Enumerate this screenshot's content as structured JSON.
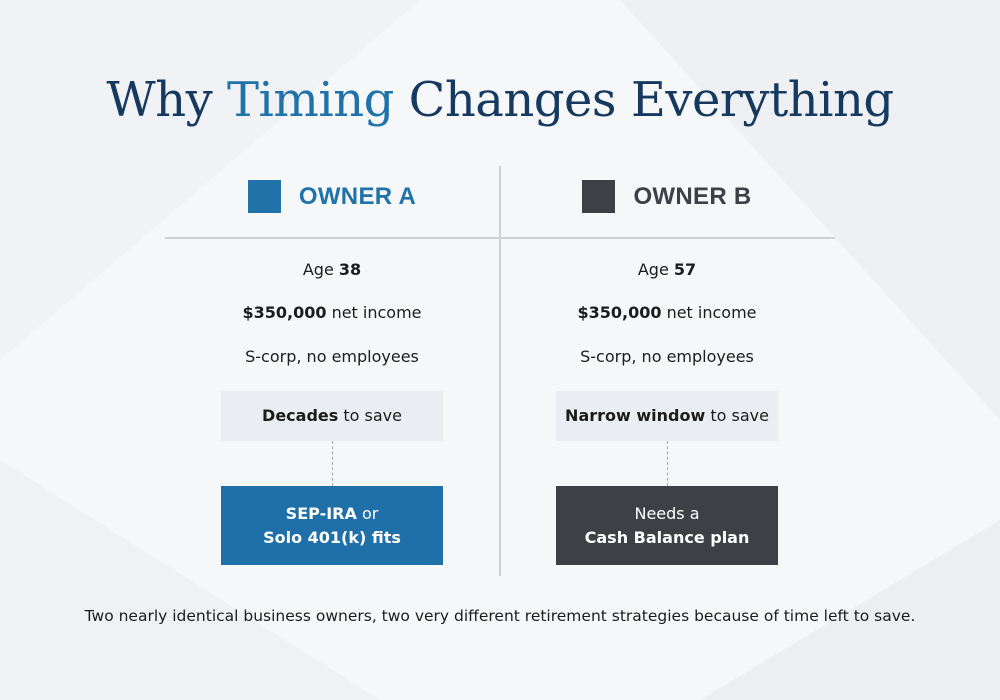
{
  "title": {
    "prefix": "Why ",
    "accent": "Timing",
    "suffix": " Changes Everything"
  },
  "colors": {
    "title": "#163a5f",
    "accent": "#1f73a8",
    "owner_a": "#1f73a8",
    "owner_b": "#3d4145",
    "box_light": "#eaedf2"
  },
  "owner_a": {
    "label": "OWNER A",
    "age_prefix": "Age ",
    "age": "38",
    "income_amount": "$350,000",
    "income_suffix": " net income",
    "entity": "S-corp, no employees",
    "window_bold": "Decades",
    "window_suffix": " to save",
    "plan_line1_bold": "SEP-IRA",
    "plan_line1_suffix": " or",
    "plan_line2": "Solo 401(k) fits"
  },
  "owner_b": {
    "label": "OWNER B",
    "age_prefix": "Age ",
    "age": "57",
    "income_amount": "$350,000",
    "income_suffix": " net income",
    "entity": "S-corp, no employees",
    "window_bold": "Narrow window",
    "window_suffix": " to save",
    "plan_line1": "Needs a",
    "plan_line2": "Cash Balance plan"
  },
  "caption": "Two nearly identical business owners, two very different retirement strategies because of time left to save."
}
